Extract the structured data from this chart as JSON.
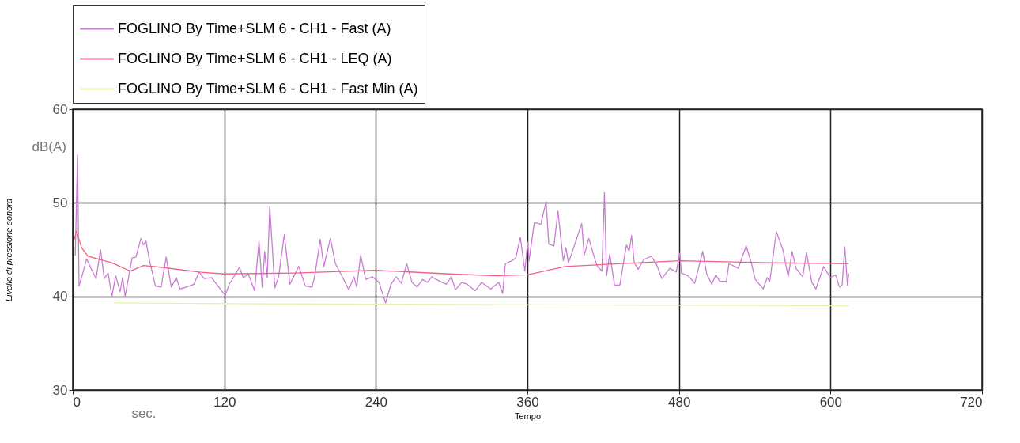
{
  "chart_data": {
    "type": "line",
    "xlabel": "Tempo",
    "ylabel": "Livello di pressione sonora",
    "annotations": [
      "dB(A)",
      "sec."
    ],
    "xlim": [
      0,
      720
    ],
    "xticks": [
      0,
      120,
      240,
      360,
      480,
      600,
      720
    ],
    "ylim": [
      30,
      60
    ],
    "yticks": [
      30,
      40,
      50,
      60
    ],
    "grid": true,
    "legend": "top",
    "marker": "none",
    "line_style": "solid",
    "series": [
      {
        "name": "FOGLINO By Time+SLM 6 - CH1 - Fast (A)",
        "color": "#c87ed0",
        "x": [
          2,
          3.8,
          5,
          8,
          11,
          15.5,
          18.5,
          22,
          25,
          28,
          31,
          34,
          37.5,
          39.5,
          41.5,
          47,
          50,
          54,
          56,
          58,
          61,
          65.5,
          70,
          74,
          78,
          82,
          85,
          90,
          96,
          100,
          104,
          110,
          114,
          120.6,
          124,
          132,
          135,
          139,
          144,
          147.5,
          150,
          152,
          154,
          156,
          160,
          163,
          167.5,
          172,
          179,
          184.2,
          189.4,
          191.5,
          196,
          198.8,
          204,
          208,
          213.4,
          218.6,
          222.7,
          224.8,
          228,
          232,
          237.3,
          242.5,
          247.7,
          252,
          256,
          260.2,
          264.4,
          268.6,
          272.7,
          276.9,
          281,
          284.2,
          289.4,
          295.6,
          299.8,
          303,
          308,
          312.3,
          318.6,
          323.8,
          331,
          337.3,
          340.4,
          342.5,
          347.7,
          350.8,
          354.4,
          358,
          360.2,
          361.3,
          365.5,
          370.6,
          374.8,
          376.9,
          381,
          384.2,
          388.4,
          390.5,
          392.5,
          394.6,
          403,
          405,
          408.6,
          413.4,
          415.4,
          419,
          421,
          422.7,
          425.2,
          429,
          433.2,
          438.4,
          440.5,
          442.5,
          444.6,
          447.7,
          451.9,
          458,
          462.3,
          466.5,
          472.7,
          477.9,
          480.6,
          482,
          487.3,
          492.5,
          498.8,
          502,
          506,
          509.2,
          512.3,
          517.5,
          519.6,
          526.9,
          533.2,
          537.3,
          540.4,
          546.7,
          549.8,
          551.9,
          557.1,
          562.3,
          566.5,
          569.6,
          572.7,
          578,
          581,
          585.2,
          588.4,
          594.6,
          599.8,
          604,
          607.1,
          609.2,
          611.3,
          613.4,
          614.4
        ],
        "values": [
          44.4,
          55.1,
          41.1,
          42.5,
          44,
          42.7,
          41.9,
          45,
          41.9,
          42.5,
          40,
          42.2,
          40.5,
          42,
          40,
          44.1,
          44.2,
          46.2,
          45.5,
          45.9,
          43.7,
          41.1,
          41,
          44.2,
          41,
          42,
          40.8,
          41,
          41.3,
          42.6,
          41.9,
          42,
          41.3,
          40.1,
          41.3,
          43.1,
          42,
          42.4,
          40.6,
          45.9,
          41,
          44.8,
          42,
          49.6,
          40.9,
          42.1,
          46.6,
          41.3,
          43.2,
          41.1,
          41,
          42.1,
          46.1,
          43.2,
          46.2,
          43.5,
          42.1,
          40.7,
          42.1,
          41,
          44.4,
          41.8,
          42.1,
          41.5,
          39.3,
          41.3,
          42.1,
          41.4,
          43.5,
          41.5,
          41,
          41.8,
          41.5,
          42.1,
          41.7,
          41.3,
          42.1,
          40.7,
          41.5,
          41.3,
          40.6,
          41.5,
          40.8,
          41.5,
          40.3,
          43.5,
          43.8,
          44.1,
          46.3,
          42.7,
          45.8,
          43.8,
          47.9,
          47.7,
          50.1,
          45.6,
          45.4,
          49.1,
          43.8,
          45.2,
          43.6,
          44.4,
          47.8,
          44.4,
          46.2,
          44,
          43.2,
          42.7,
          51.1,
          42.2,
          44.5,
          41.2,
          41.2,
          45.5,
          44.8,
          46.5,
          43.6,
          42.9,
          43.9,
          44.3,
          43.4,
          41.9,
          43,
          42.6,
          44.6,
          42.5,
          42.2,
          41.4,
          44.8,
          42.4,
          41.3,
          42.3,
          41.6,
          41.6,
          43.5,
          43,
          45.4,
          43.6,
          41.8,
          40.8,
          42,
          41.6,
          46.9,
          45,
          42.1,
          44.8,
          43,
          42.1,
          44.7,
          41.5,
          40.8,
          43.2,
          42,
          42.3,
          41,
          41.2,
          45.3,
          41.2,
          42.4
        ]
      },
      {
        "name": "FOGLINO By Time+SLM 6 - CH1 - LEQ (A)",
        "color": "#f06284",
        "x": [
          1,
          3,
          7,
          12,
          31,
          45.6,
          56,
          71,
          100,
          120,
          176,
          239,
          298,
          335,
          360,
          390,
          448,
          481,
          552,
          614
        ],
        "values": [
          46,
          47,
          45.2,
          44.3,
          43.6,
          42.7,
          43.3,
          43.1,
          42.6,
          42.4,
          42.5,
          42.8,
          42.4,
          42.2,
          42.3,
          43.2,
          43.6,
          43.8,
          43.6,
          43.5
        ]
      },
      {
        "name": "FOGLINO By Time+SLM 6 - CH1 - Fast Min (A)",
        "color": "#eeeea8",
        "x": [
          33,
          150,
          360,
          614
        ],
        "values": [
          39.3,
          39.2,
          39.1,
          39
        ]
      }
    ]
  }
}
